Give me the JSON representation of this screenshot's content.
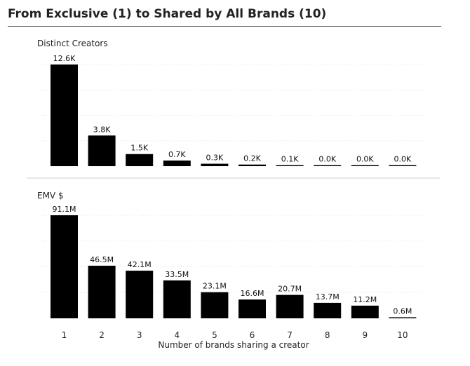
{
  "title": "From Exclusive (1) to Shared by All Brands (10)",
  "chart_data": [
    {
      "type": "bar",
      "subtitle": "Distinct Creators",
      "categories": [
        "1",
        "2",
        "3",
        "4",
        "5",
        "6",
        "7",
        "8",
        "9",
        "10"
      ],
      "values": [
        12.6,
        3.8,
        1.5,
        0.7,
        0.3,
        0.2,
        0.1,
        0.0,
        0.0,
        0.0
      ],
      "data_labels": [
        "12.6K",
        "3.8K",
        "1.5K",
        "0.7K",
        "0.3K",
        "0.2K",
        "0.1K",
        "0.0K",
        "0.0K",
        "0.0K"
      ],
      "ylim": [
        0,
        12.6
      ],
      "bar_color": "#000000",
      "grid": true
    },
    {
      "type": "bar",
      "subtitle": "EMV $",
      "categories": [
        "1",
        "2",
        "3",
        "4",
        "5",
        "6",
        "7",
        "8",
        "9",
        "10"
      ],
      "values": [
        91.1,
        46.5,
        42.1,
        33.5,
        23.1,
        16.6,
        20.7,
        13.7,
        11.2,
        0.6
      ],
      "data_labels": [
        "91.1M",
        "46.5M",
        "42.1M",
        "33.5M",
        "23.1M",
        "16.6M",
        "20.7M",
        "13.7M",
        "11.2M",
        "0.6M"
      ],
      "ylim": [
        0,
        91.1
      ],
      "bar_color": "#000000",
      "grid": true,
      "xlabel": "Number of brands sharing a creator"
    }
  ]
}
